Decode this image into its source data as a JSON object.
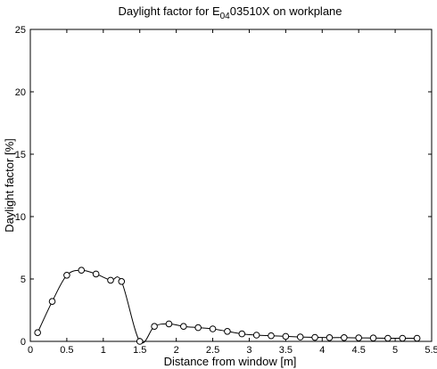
{
  "chart_data": {
    "type": "line",
    "title_prefix": "Daylight factor for E",
    "title_subscript": "04",
    "title_suffix": "03510X on workplane",
    "xlabel": "Distance from window [m]",
    "ylabel": "Daylight factor [%]",
    "xlim": [
      0,
      5.5
    ],
    "ylim": [
      0,
      25
    ],
    "xticks": [
      0,
      0.5,
      1,
      1.5,
      2,
      2.5,
      3,
      3.5,
      4,
      4.5,
      5,
      5.5
    ],
    "xtick_labels": [
      "0",
      "0.5",
      "1",
      "1.5",
      "2",
      "2.5",
      "3",
      "3.5",
      "4",
      "4.5",
      "5",
      "5.5"
    ],
    "yticks": [
      0,
      5,
      10,
      15,
      20,
      25
    ],
    "ytick_labels": [
      "0",
      "5",
      "10",
      "15",
      "20",
      "25"
    ],
    "grid": false,
    "marker": "circle",
    "line_color": "#000000",
    "series": [
      {
        "x": [
          0.1,
          0.3,
          0.5,
          0.7,
          0.9,
          1.1,
          1.25,
          1.5,
          1.7,
          1.9,
          2.1,
          2.3,
          2.5,
          2.7,
          2.9,
          3.1,
          3.3,
          3.5,
          3.7,
          3.9,
          4.1,
          4.3,
          4.5,
          4.7,
          4.9,
          5.1,
          5.3
        ],
        "y": [
          0.7,
          3.2,
          5.3,
          5.7,
          5.4,
          4.9,
          4.8,
          0.0,
          1.2,
          1.4,
          1.2,
          1.1,
          1.0,
          0.8,
          0.6,
          0.5,
          0.45,
          0.4,
          0.35,
          0.32,
          0.3,
          0.3,
          0.28,
          0.27,
          0.25,
          0.25,
          0.25
        ]
      }
    ]
  }
}
